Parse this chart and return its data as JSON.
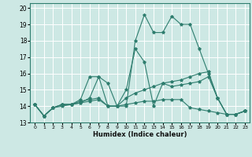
{
  "xlabel": "Humidex (Indice chaleur)",
  "xlim": [
    -0.5,
    23.5
  ],
  "ylim": [
    13,
    20.3
  ],
  "yticks": [
    13,
    14,
    15,
    16,
    17,
    18,
    19,
    20
  ],
  "xticks": [
    0,
    1,
    2,
    3,
    4,
    5,
    6,
    7,
    8,
    9,
    10,
    11,
    12,
    13,
    14,
    15,
    16,
    17,
    18,
    19,
    20,
    21,
    22,
    23
  ],
  "background_color": "#cde8e4",
  "grid_color": "#ffffff",
  "line_color": "#2e7d6e",
  "lines": [
    [
      14.1,
      13.4,
      13.9,
      14.0,
      14.1,
      14.2,
      14.5,
      15.8,
      15.4,
      14.0,
      14.0,
      18.0,
      19.6,
      18.5,
      18.5,
      19.5,
      19.0,
      19.0,
      17.5,
      16.0,
      14.5,
      13.5,
      13.5,
      13.7
    ],
    [
      14.1,
      13.4,
      13.9,
      14.1,
      14.1,
      14.4,
      15.8,
      15.8,
      14.0,
      14.0,
      15.0,
      17.5,
      16.7,
      14.0,
      15.4,
      15.2,
      15.3,
      15.4,
      15.5,
      15.8,
      14.5,
      13.5,
      13.5,
      13.7
    ],
    [
      14.1,
      13.4,
      13.9,
      14.1,
      14.1,
      14.3,
      14.4,
      14.5,
      14.0,
      14.0,
      14.5,
      14.8,
      15.0,
      15.2,
      15.4,
      15.5,
      15.6,
      15.8,
      16.0,
      16.1,
      14.5,
      13.5,
      13.5,
      13.7
    ],
    [
      14.1,
      13.4,
      13.9,
      14.1,
      14.1,
      14.2,
      14.3,
      14.4,
      14.0,
      14.0,
      14.1,
      14.2,
      14.3,
      14.3,
      14.4,
      14.4,
      14.4,
      13.9,
      13.8,
      13.7,
      13.6,
      13.5,
      13.5,
      13.7
    ]
  ]
}
